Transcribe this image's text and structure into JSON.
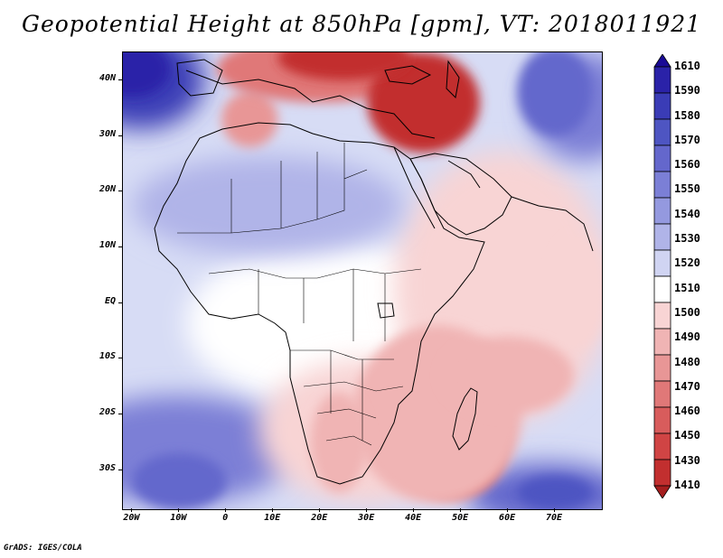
{
  "title": "Geopotential Height at 850hPa [gpm], VT: 2018011921",
  "credit": "GrADS: IGES/COLA",
  "lat_labels": [
    "40N",
    "30N",
    "20N",
    "10N",
    "EQ",
    "10S",
    "20S",
    "30S"
  ],
  "lat_values": [
    40,
    30,
    20,
    10,
    0,
    -10,
    -20,
    -30
  ],
  "lon_labels": [
    "20W",
    "10W",
    "0",
    "10E",
    "20E",
    "30E",
    "40E",
    "50E",
    "60E",
    "70E"
  ],
  "lon_values": [
    -20,
    -10,
    0,
    10,
    20,
    30,
    40,
    50,
    60,
    70
  ],
  "map_extent": {
    "lon_min": -22,
    "lon_max": 80,
    "lat_min": -37,
    "lat_max": 45
  },
  "colorbar": {
    "labels": [
      "1610",
      "1590",
      "1580",
      "1570",
      "1560",
      "1550",
      "1540",
      "1530",
      "1520",
      "1510",
      "1500",
      "1490",
      "1480",
      "1470",
      "1460",
      "1450",
      "1430",
      "1410"
    ],
    "colors": [
      "#1a0a96",
      "#2a22a8",
      "#3a3cb6",
      "#4e55c2",
      "#6467cc",
      "#7b7fd6",
      "#9499df",
      "#b0b4e8",
      "#d0d4f2",
      "#ffffff",
      "#f8d4d4",
      "#f0b4b4",
      "#e89696",
      "#e07878",
      "#d85c5c",
      "#d04444",
      "#c22f2f",
      "#a51e1e"
    ]
  },
  "field_blobs": [
    {
      "lon": 52,
      "lat": -27,
      "rx": 6,
      "ry": 6,
      "color": "#a51e1e"
    },
    {
      "lon": 48,
      "lat": -24,
      "rx": 12,
      "ry": 11,
      "color": "#d85c5c"
    },
    {
      "lon": 45,
      "lat": -20,
      "rx": 18,
      "ry": 16,
      "color": "#f0b4b4"
    },
    {
      "lon": 24,
      "lat": -25,
      "rx": 6,
      "ry": 9,
      "color": "#f0b4b4"
    },
    {
      "lon": 5,
      "lat": 33,
      "rx": 6,
      "ry": 5,
      "color": "#e89696"
    },
    {
      "lon": 20,
      "lat": 42,
      "rx": 22,
      "ry": 6,
      "color": "#e07878"
    },
    {
      "lon": 42,
      "lat": 36,
      "rx": 12,
      "ry": 9,
      "color": "#c22f2f"
    },
    {
      "lon": 25,
      "lat": 44,
      "rx": 14,
      "ry": 4,
      "color": "#c22f2f"
    },
    {
      "lon": 70,
      "lat": 38,
      "rx": 8,
      "ry": 8,
      "color": "#6467cc"
    },
    {
      "lon": -20,
      "lat": 42,
      "rx": 8,
      "ry": 5,
      "color": "#2a22a8"
    },
    {
      "lon": 60,
      "lat": -13,
      "rx": 14,
      "ry": 7,
      "color": "#f0b4b4"
    },
    {
      "lon": 75,
      "lat": 2,
      "rx": 6,
      "ry": 10,
      "color": "#f8d4d4"
    },
    {
      "lon": -10,
      "lat": -32,
      "rx": 10,
      "ry": 5,
      "color": "#6467cc"
    },
    {
      "lon": 70,
      "lat": -34,
      "rx": 8,
      "ry": 3,
      "color": "#4e55c2"
    }
  ]
}
